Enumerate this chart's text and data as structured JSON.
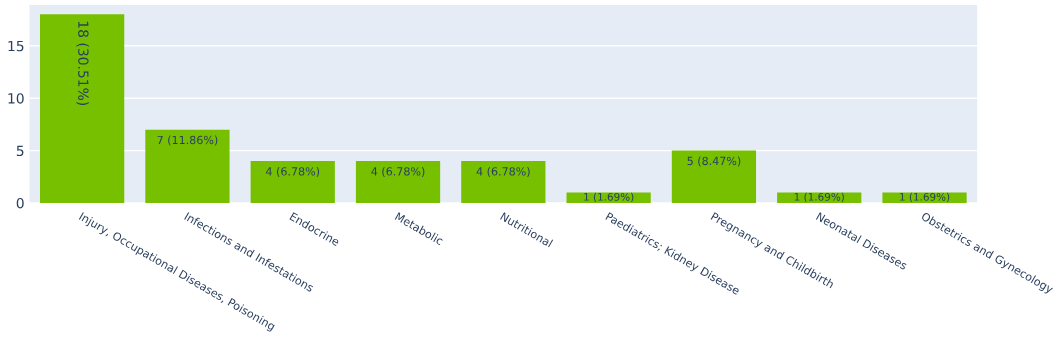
{
  "chart_data": {
    "type": "bar",
    "categories": [
      "Injury, Occupational Diseases, Poisoning",
      "Infections and Infestations",
      "Endocrine",
      "Metabolic",
      "Nutritional",
      "Paediatrics; Kidney Disease",
      "Pregnancy and Childbirth",
      "Neonatal Diseases",
      "Obstetrics and Gynecology"
    ],
    "values": [
      18,
      7,
      4,
      4,
      4,
      1,
      5,
      1,
      1
    ],
    "value_labels": [
      "18 (30.51%)",
      "7 (11.86%)",
      "4 (6.78%)",
      "4 (6.78%)",
      "4 (6.78%)",
      "1 (1.69%)",
      "5 (8.47%)",
      "1 (1.69%)",
      "1 (1.69%)"
    ],
    "color": "#76c000",
    "ylim": [
      0,
      18.9
    ],
    "yticks": [
      0,
      5,
      10,
      15
    ],
    "grid": "y"
  }
}
